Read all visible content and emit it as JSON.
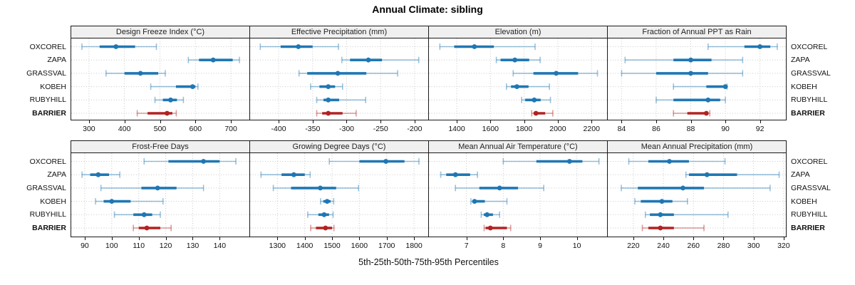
{
  "title": "Annual Climate: sibling",
  "footer": "5th-25th-50th-75th-95th Percentiles",
  "stations": [
    "OXCOREL",
    "ZAPA",
    "GRASSVAL",
    "KOBEH",
    "RUBYHILL",
    "BARRIER"
  ],
  "target_station": "BARRIER",
  "colors": {
    "series_blue": "#1f77b4",
    "target_red": "#b22222",
    "grid": "#c8c8c8",
    "header_bg": "#f0f0f0",
    "border": "#1a1a1a"
  },
  "percentile_levels": [
    5,
    25,
    50,
    75,
    95
  ],
  "chart_data": [
    {
      "type": "dot-whisker",
      "title": "Design Freeze Index (°C)",
      "row": 0,
      "col": 0,
      "xlim": [
        250,
        752
      ],
      "ticks": [
        300,
        400,
        500,
        600,
        700
      ],
      "series": [
        {
          "name": "OXCOREL",
          "values": [
            280,
            330,
            376,
            430,
            490
          ]
        },
        {
          "name": "ZAPA",
          "values": [
            580,
            610,
            650,
            705,
            724
          ]
        },
        {
          "name": "GRASSVAL",
          "values": [
            348,
            400,
            445,
            495,
            515
          ]
        },
        {
          "name": "KOBEH",
          "values": [
            474,
            545,
            592,
            600,
            607
          ]
        },
        {
          "name": "RUBYHILL",
          "values": [
            486,
            508,
            530,
            548,
            566
          ]
        },
        {
          "name": "BARRIER",
          "values": [
            436,
            465,
            520,
            535,
            546
          ]
        }
      ]
    },
    {
      "type": "dot-whisker",
      "title": "Effective Precipitation (mm)",
      "row": 0,
      "col": 1,
      "xlim": [
        -442,
        -180
      ],
      "ticks": [
        -400,
        -350,
        -300,
        -250,
        -200
      ],
      "series": [
        {
          "name": "OXCOREL",
          "values": [
            -427,
            -397,
            -371,
            -350,
            -312
          ]
        },
        {
          "name": "ZAPA",
          "values": [
            -307,
            -295,
            -268,
            -248,
            -194
          ]
        },
        {
          "name": "GRASSVAL",
          "values": [
            -370,
            -358,
            -313,
            -271,
            -225
          ]
        },
        {
          "name": "KOBEH",
          "values": [
            -353,
            -340,
            -327,
            -317,
            -306
          ]
        },
        {
          "name": "RUBYHILL",
          "values": [
            -344,
            -334,
            -327,
            -311,
            -272
          ]
        },
        {
          "name": "BARRIER",
          "values": [
            -344,
            -336,
            -327,
            -306,
            -286
          ]
        }
      ]
    },
    {
      "type": "dot-whisker",
      "title": "Elevation (m)",
      "row": 0,
      "col": 2,
      "xlim": [
        1235,
        2292
      ],
      "ticks": [
        1400,
        1600,
        1800,
        2000,
        2200
      ],
      "series": [
        {
          "name": "OXCOREL",
          "values": [
            1300,
            1385,
            1505,
            1620,
            1865
          ]
        },
        {
          "name": "ZAPA",
          "values": [
            1635,
            1660,
            1745,
            1830,
            1895
          ]
        },
        {
          "name": "GRASSVAL",
          "values": [
            1735,
            1855,
            1990,
            2120,
            2235
          ]
        },
        {
          "name": "KOBEH",
          "values": [
            1695,
            1722,
            1757,
            1826,
            1950
          ]
        },
        {
          "name": "RUBYHILL",
          "values": [
            1785,
            1806,
            1860,
            1898,
            1956
          ]
        },
        {
          "name": "BARRIER",
          "values": [
            1845,
            1856,
            1870,
            1925,
            1970
          ]
        }
      ]
    },
    {
      "type": "dot-whisker",
      "title": "Fraction of Annual PPT as Rain",
      "row": 0,
      "col": 3,
      "xlim": [
        83.2,
        93.5
      ],
      "ticks": [
        84,
        86,
        88,
        90,
        92
      ],
      "series": [
        {
          "name": "OXCOREL",
          "values": [
            89,
            91.1,
            92,
            92.6,
            93
          ]
        },
        {
          "name": "ZAPA",
          "values": [
            84.2,
            87,
            88,
            89.2,
            91
          ]
        },
        {
          "name": "GRASSVAL",
          "values": [
            84,
            86,
            88,
            89,
            91
          ]
        },
        {
          "name": "KOBEH",
          "values": [
            87,
            88.9,
            90,
            90,
            90.1
          ]
        },
        {
          "name": "RUBYHILL",
          "values": [
            86,
            87,
            89,
            89.7,
            90
          ]
        },
        {
          "name": "BARRIER",
          "values": [
            87,
            87.8,
            88.9,
            89,
            89.1
          ]
        }
      ]
    },
    {
      "type": "dot-whisker",
      "title": "Frost-Free Days",
      "row": 1,
      "col": 0,
      "xlim": [
        85,
        151
      ],
      "ticks": [
        90,
        100,
        110,
        120,
        130,
        140
      ],
      "series": [
        {
          "name": "OXCOREL",
          "values": [
            112,
            121,
            134,
            140,
            146
          ]
        },
        {
          "name": "ZAPA",
          "values": [
            89,
            92,
            95,
            99,
            103
          ]
        },
        {
          "name": "GRASSVAL",
          "values": [
            96,
            111,
            117,
            124,
            134
          ]
        },
        {
          "name": "KOBEH",
          "values": [
            94,
            97,
            100,
            107,
            119
          ]
        },
        {
          "name": "RUBYHILL",
          "values": [
            101,
            108,
            112,
            115,
            118
          ]
        },
        {
          "name": "BARRIER",
          "values": [
            108,
            110,
            113,
            118,
            122
          ]
        }
      ]
    },
    {
      "type": "dot-whisker",
      "title": "Growing Degree Days (°C)",
      "row": 1,
      "col": 1,
      "xlim": [
        1200,
        1852
      ],
      "ticks": [
        1300,
        1400,
        1500,
        1600,
        1700,
        1800
      ],
      "series": [
        {
          "name": "OXCOREL",
          "values": [
            1490,
            1600,
            1697,
            1765,
            1818
          ]
        },
        {
          "name": "ZAPA",
          "values": [
            1240,
            1315,
            1360,
            1400,
            1420
          ]
        },
        {
          "name": "GRASSVAL",
          "values": [
            1285,
            1350,
            1457,
            1515,
            1597
          ]
        },
        {
          "name": "KOBEH",
          "values": [
            1458,
            1468,
            1482,
            1495,
            1506
          ]
        },
        {
          "name": "RUBYHILL",
          "values": [
            1411,
            1450,
            1471,
            1489,
            1504
          ]
        },
        {
          "name": "BARRIER",
          "values": [
            1422,
            1441,
            1476,
            1500,
            1507
          ]
        }
      ]
    },
    {
      "type": "dot-whisker",
      "title": "Mean Annual Air Temperature (°C)",
      "row": 1,
      "col": 2,
      "xlim": [
        5.98,
        10.82
      ],
      "ticks": [
        7,
        8,
        9,
        10
      ],
      "series": [
        {
          "name": "OXCOREL",
          "values": [
            8.0,
            8.9,
            9.8,
            10.15,
            10.6
          ]
        },
        {
          "name": "ZAPA",
          "values": [
            6.3,
            6.45,
            6.7,
            7.1,
            7.3
          ]
        },
        {
          "name": "GRASSVAL",
          "values": [
            6.7,
            7.35,
            7.9,
            8.4,
            9.1
          ]
        },
        {
          "name": "KOBEH",
          "values": [
            7.12,
            7.16,
            7.22,
            7.5,
            8.1
          ]
        },
        {
          "name": "RUBYHILL",
          "values": [
            7.4,
            7.47,
            7.56,
            7.72,
            7.9
          ]
        },
        {
          "name": "BARRIER",
          "values": [
            7.48,
            7.52,
            7.65,
            8.1,
            8.2
          ]
        }
      ]
    },
    {
      "type": "dot-whisker",
      "title": "Mean Annual Precipitation (mm)",
      "row": 1,
      "col": 3,
      "xlim": [
        203,
        321.5
      ],
      "ticks": [
        220,
        240,
        260,
        280,
        300,
        320
      ],
      "series": [
        {
          "name": "OXCOREL",
          "values": [
            217,
            230,
            244,
            257,
            281
          ]
        },
        {
          "name": "ZAPA",
          "values": [
            255,
            257,
            269,
            289,
            317
          ]
        },
        {
          "name": "GRASSVAL",
          "values": [
            212,
            223,
            253,
            267,
            311
          ]
        },
        {
          "name": "KOBEH",
          "values": [
            221,
            225,
            239,
            246,
            256
          ]
        },
        {
          "name": "RUBYHILL",
          "values": [
            228,
            231,
            238,
            247,
            283
          ]
        },
        {
          "name": "BARRIER",
          "values": [
            226,
            230,
            238,
            247,
            267
          ]
        }
      ]
    }
  ]
}
